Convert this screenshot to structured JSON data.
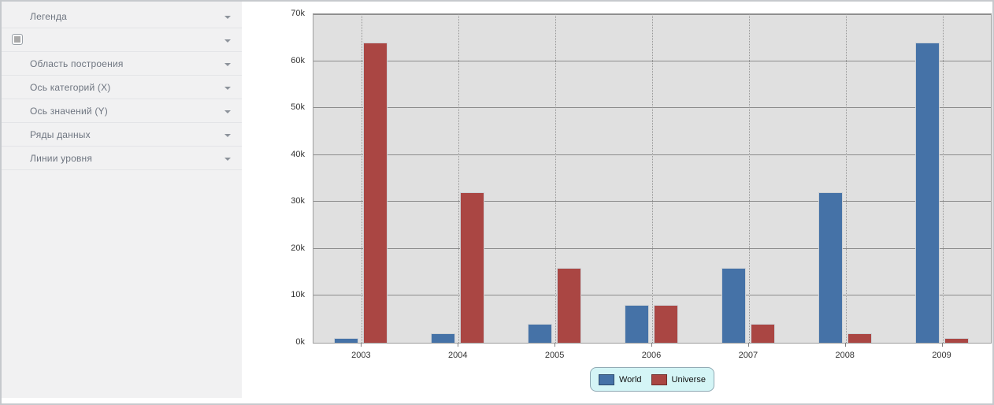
{
  "sidebar": {
    "items": [
      {
        "label": "Легенда"
      },
      {
        "label": ""
      },
      {
        "label": "Область построения"
      },
      {
        "label": "Ось категорий (X)"
      },
      {
        "label": "Ось значений (Y)"
      },
      {
        "label": "Ряды данных"
      },
      {
        "label": "Линии уровня"
      }
    ]
  },
  "chart_data": {
    "type": "bar",
    "title": "",
    "categories": [
      "2003",
      "2004",
      "2005",
      "2006",
      "2007",
      "2008",
      "2009"
    ],
    "series": [
      {
        "name": "World",
        "color": "#4572a7",
        "values": [
          1000,
          2000,
          4000,
          8000,
          16000,
          32000,
          64000
        ]
      },
      {
        "name": "Universe",
        "color": "#aa4643",
        "values": [
          64000,
          32000,
          16000,
          8000,
          4000,
          2000,
          1000
        ]
      }
    ],
    "xlabel": "",
    "ylabel": "",
    "ylim": [
      0,
      70000
    ],
    "y_tick_step": 10000,
    "y_tick_labels": [
      "0k",
      "10k",
      "20k",
      "30k",
      "40k",
      "50k",
      "60k",
      "70k"
    ],
    "grid": true,
    "plot_background": "#e0e0e0",
    "legend_position": "bottom-center"
  },
  "colors": {
    "world": "#4572a7",
    "universe": "#aa4643",
    "legend_background": "#d4f5f6",
    "sidebar_background": "#f1f1f2"
  }
}
